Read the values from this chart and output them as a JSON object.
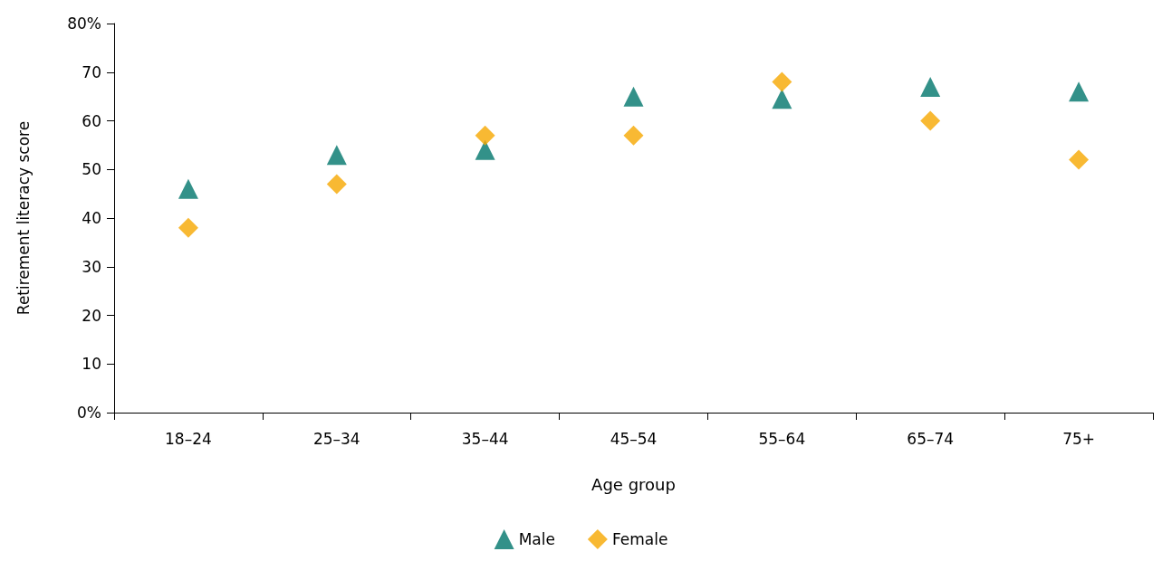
{
  "chart_data": {
    "type": "scatter",
    "xlabel": "Age group",
    "ylabel": "Retirement literacy score",
    "categories": [
      "18–24",
      "25–34",
      "35–44",
      "45–54",
      "55–64",
      "65–74",
      "75+"
    ],
    "series": [
      {
        "name": "Male",
        "color": "#00756b",
        "marker": "triangle",
        "values": [
          46,
          53,
          54,
          65,
          64.5,
          67,
          66
        ]
      },
      {
        "name": "Female",
        "color": "#f6a800",
        "marker": "diamond",
        "values": [
          38,
          47,
          57,
          57,
          68,
          60,
          52
        ]
      }
    ],
    "ylim": [
      0,
      80
    ],
    "yticks": [
      {
        "value": 0,
        "label": "0%"
      },
      10,
      20,
      30,
      40,
      50,
      60,
      70,
      {
        "value": 80,
        "label": "80%"
      }
    ],
    "grid": false,
    "legend": "bottom"
  }
}
